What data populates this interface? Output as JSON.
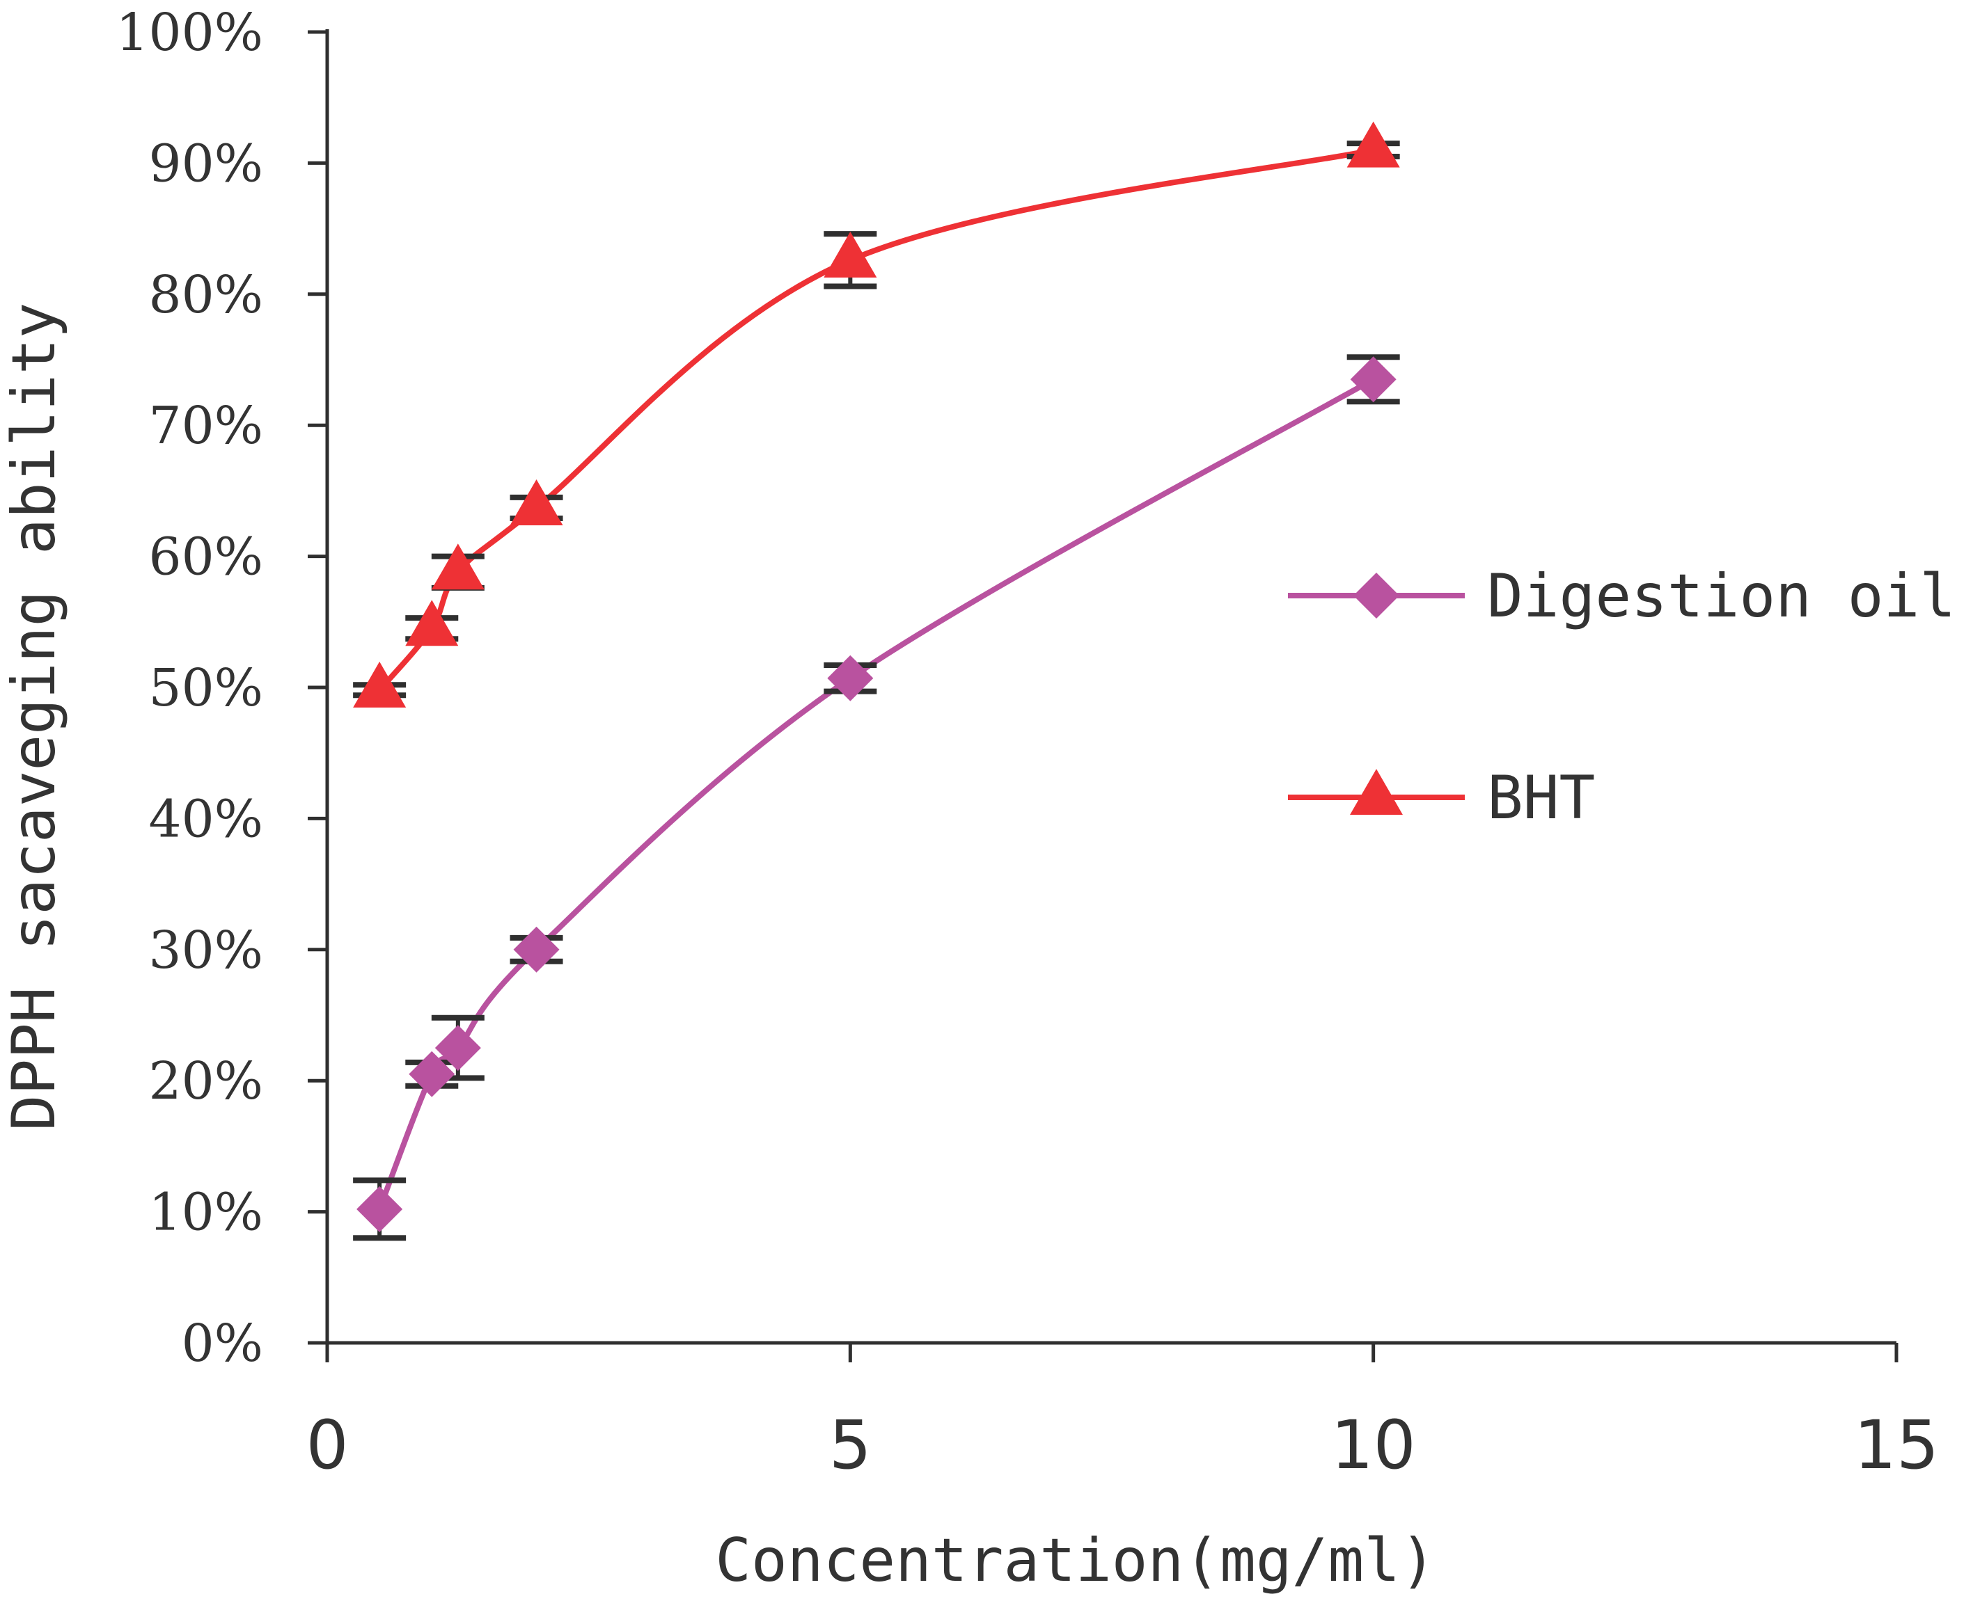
{
  "chart_data": {
    "type": "line",
    "title": "",
    "xlabel": "Concentration(mg/ml)",
    "ylabel": "DPPH sacaveging ability",
    "xlim": [
      0,
      15
    ],
    "ylim": [
      0,
      100
    ],
    "x_ticks": [
      "0",
      "5",
      "10",
      "15"
    ],
    "x_tick_values": [
      0,
      5,
      10,
      15
    ],
    "y_ticks": [
      "0%",
      "10%",
      "20%",
      "30%",
      "40%",
      "50%",
      "60%",
      "70%",
      "80%",
      "90%",
      "100%"
    ],
    "y_tick_values": [
      0,
      10,
      20,
      30,
      40,
      50,
      60,
      70,
      80,
      90,
      100
    ],
    "grid": false,
    "legend_position": "right",
    "series": [
      {
        "name": "Digestion oil",
        "color": "#B9529F",
        "marker": "diamond",
        "x": [
          0.5,
          1.0,
          1.25,
          2.0,
          5.0,
          10.0
        ],
        "values": [
          10.2,
          20.5,
          22.5,
          30.0,
          50.7,
          73.5
        ],
        "errors": [
          2.2,
          0.9,
          2.3,
          0.9,
          1.0,
          1.7
        ]
      },
      {
        "name": "BHT",
        "color": "#EE3135",
        "marker": "triangle",
        "x": [
          0.5,
          1.0,
          1.25,
          2.0,
          5.0,
          10.0
        ],
        "values": [
          49.8,
          54.5,
          58.8,
          63.7,
          82.6,
          91.0
        ],
        "errors": [
          0.4,
          0.8,
          1.2,
          0.8,
          2.0,
          0.5
        ]
      }
    ]
  }
}
